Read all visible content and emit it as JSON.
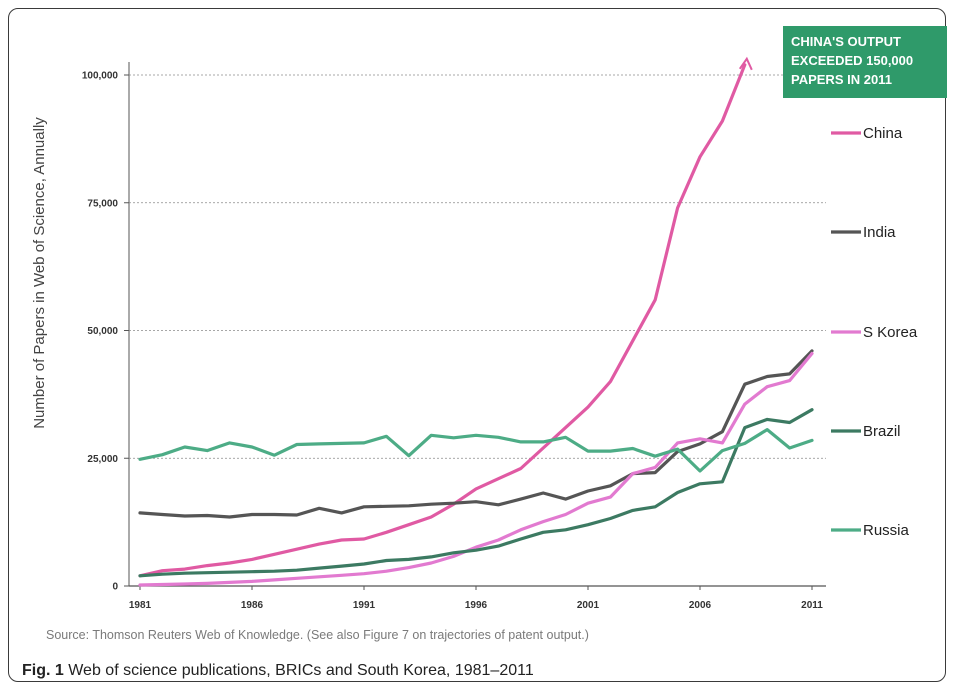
{
  "chart_data": {
    "type": "line",
    "title": "",
    "ylabel": "Number of Papers in Web of Science, Annually",
    "xlabel": "",
    "x": [
      1981,
      1982,
      1983,
      1984,
      1985,
      1986,
      1987,
      1988,
      1989,
      1990,
      1991,
      1992,
      1993,
      1994,
      1995,
      1996,
      1997,
      1998,
      1999,
      2000,
      2001,
      2002,
      2003,
      2004,
      2005,
      2006,
      2007,
      2008,
      2009,
      2010,
      2011
    ],
    "x_ticks": [
      "1981",
      "1986",
      "1991",
      "1996",
      "2001",
      "2006",
      "2011"
    ],
    "y_ticks": [
      "0",
      "25,000",
      "50,000",
      "75,000",
      "100,000"
    ],
    "ylim": [
      0,
      100000
    ],
    "grid": "horizontal dotted",
    "legend_placement": "right",
    "series": [
      {
        "name": "China",
        "color": "#e05aa3",
        "values": [
          2000,
          3000,
          3300,
          4000,
          4500,
          5200,
          6200,
          7200,
          8200,
          9000,
          9200,
          10500,
          12000,
          13500,
          16000,
          19000,
          21000,
          23000,
          27000,
          31000,
          35000,
          40000,
          48000,
          56000,
          74000,
          84000,
          91000,
          102000,
          null,
          null,
          null
        ]
      },
      {
        "name": "India",
        "color": "#555555",
        "values": [
          14300,
          14000,
          13700,
          13800,
          13500,
          14000,
          14000,
          13900,
          15200,
          14300,
          15500,
          15600,
          15700,
          16000,
          16200,
          16500,
          15900,
          17000,
          18200,
          17000,
          18600,
          19600,
          22000,
          22200,
          26300,
          27800,
          30200,
          39500,
          41000,
          41500,
          46000
        ]
      },
      {
        "name": "S Korea",
        "color": "#e27ad0",
        "values": [
          200,
          300,
          400,
          500,
          700,
          900,
          1200,
          1500,
          1800,
          2100,
          2400,
          2900,
          3600,
          4500,
          5800,
          7600,
          9000,
          11000,
          12600,
          14000,
          16200,
          17400,
          22000,
          23200,
          28000,
          28800,
          28000,
          35600,
          39000,
          40200,
          45500
        ]
      },
      {
        "name": "Brazil",
        "color": "#3c7a62",
        "values": [
          2000,
          2300,
          2500,
          2600,
          2700,
          2800,
          2900,
          3100,
          3500,
          3900,
          4300,
          5000,
          5200,
          5700,
          6500,
          7000,
          7800,
          9200,
          10500,
          11000,
          12000,
          13200,
          14800,
          15500,
          18300,
          20000,
          20400,
          31000,
          32600,
          32000,
          34500
        ]
      },
      {
        "name": "Russia",
        "color": "#4dac86",
        "values": [
          24800,
          25700,
          27200,
          26500,
          28000,
          27200,
          25600,
          27700,
          27800,
          27900,
          28000,
          29300,
          25500,
          29500,
          29000,
          29500,
          29100,
          28200,
          28200,
          29100,
          26400,
          26400,
          26900,
          25400,
          26800,
          22500,
          26500,
          27900,
          30600,
          27000,
          28500
        ]
      }
    ],
    "annotations": [
      "CHINA'S OUTPUT",
      "EXCEEDED 150,000",
      "PAPERS IN 2011"
    ]
  },
  "source_note": "Source: Thomson Reuters Web of Knowledge. (See also Figure 7 on trajectories of patent output.)",
  "caption": {
    "label": "Fig. 1",
    "text": "Web of science publications, BRICs and South Korea, 1981–2011"
  }
}
